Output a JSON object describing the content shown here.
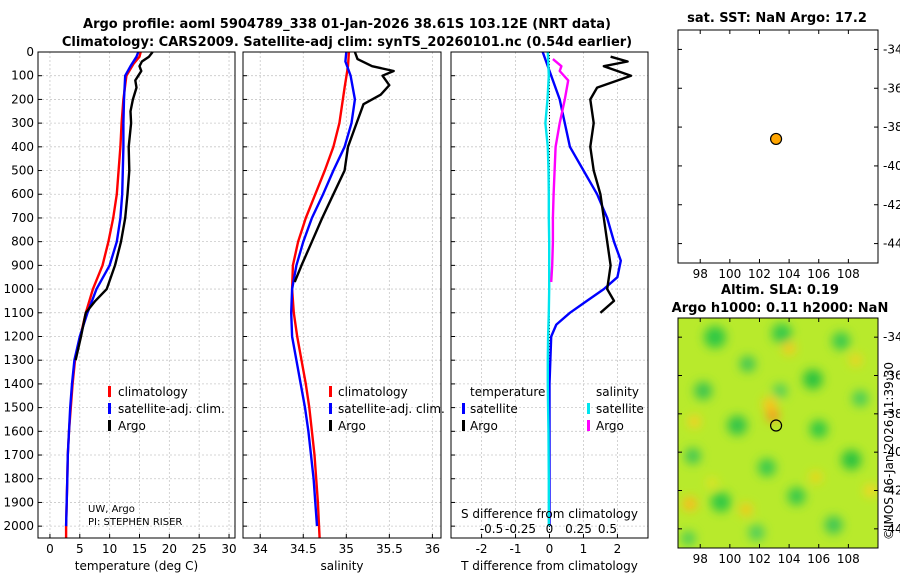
{
  "titles": {
    "line1": "Argo profile: aoml 5904789_338 01-Jan-2026 38.61S 103.12E (NRT data)",
    "line2": "Climatology: CARS2009. Satellite-adj clim: synTS_20260101.nc (0.54d earlier)",
    "sst": "sat. SST: NaN Argo: 17.2",
    "sla1": "Altim. SLA: 0.19",
    "sla2": "Argo h1000: 0.11 h2000: NaN"
  },
  "credit": {
    "line1": "UW, Argo",
    "line2": "PI: STEPHEN RISER"
  },
  "watermark": "©IMOS 06-Jan-2026 11:39:30",
  "legends": {
    "main": [
      "climatology",
      "satellite-adj. clim.",
      "Argo"
    ],
    "diff_t_header": "temperature",
    "diff_s_header": "salinity",
    "diff_items": [
      "satellite",
      "Argo"
    ]
  },
  "colors": {
    "clim": "#ff0000",
    "sat": "#0000ff",
    "argo": "#000000",
    "sat_s": "#00e5ee",
    "argo_s": "#ff00ff",
    "marker": "#ffa500"
  },
  "chart_data": [
    {
      "type": "line",
      "name": "temperature",
      "xlabel": "temperature (deg C)",
      "ylabel": "",
      "xlim": [
        -2,
        31
      ],
      "ylim": [
        2050,
        0
      ],
      "xticks": [
        0,
        5,
        10,
        15,
        20,
        25,
        30
      ],
      "xtick_labels": [
        "0",
        "5",
        "10",
        "15",
        "20",
        "25",
        "30"
      ],
      "yticks": [
        0,
        100,
        200,
        300,
        400,
        500,
        600,
        700,
        800,
        900,
        1000,
        1100,
        1200,
        1300,
        1400,
        1500,
        1600,
        1700,
        1800,
        1900,
        2000
      ],
      "ytick_labels": [
        "0",
        "100",
        "200",
        "300",
        "400",
        "500",
        "600",
        "700",
        "800",
        "900",
        "1000",
        "1100",
        "1200",
        "1300",
        "1400",
        "1500",
        "1600",
        "1700",
        "1800",
        "1900",
        "2000"
      ],
      "series": [
        {
          "name": "climatology",
          "color_key": "clim",
          "x": [
            15.2,
            15.0,
            14.0,
            12.8,
            12.3,
            12.0,
            11.8,
            11.5,
            11.2,
            10.6,
            9.8,
            8.8,
            7.2,
            6.0,
            5.1,
            4.2,
            3.8,
            3.5,
            3.2,
            3.0,
            2.9,
            2.8,
            2.7,
            2.7
          ],
          "y": [
            0,
            20,
            50,
            100,
            200,
            300,
            400,
            500,
            600,
            700,
            800,
            900,
            1000,
            1100,
            1200,
            1300,
            1400,
            1500,
            1600,
            1700,
            1800,
            1900,
            2000,
            2050
          ]
        },
        {
          "name": "satellite-adj. clim.",
          "color_key": "sat",
          "x": [
            14.8,
            14.5,
            13.5,
            12.6,
            12.4,
            12.3,
            12.3,
            12.2,
            12.1,
            11.8,
            11.2,
            10.0,
            7.8,
            6.3,
            5.0,
            4.1,
            3.7,
            3.4,
            3.2,
            3.0,
            2.9,
            2.8,
            2.7
          ],
          "y": [
            0,
            20,
            60,
            100,
            200,
            300,
            400,
            500,
            600,
            700,
            800,
            900,
            1000,
            1100,
            1200,
            1300,
            1400,
            1500,
            1600,
            1700,
            1800,
            1900,
            2000
          ]
        },
        {
          "name": "Argo",
          "color_key": "argo",
          "x": [
            17.2,
            16.6,
            15.4,
            15.0,
            15.3,
            14.8,
            14.3,
            14.5,
            13.9,
            13.5,
            13.6,
            13.2,
            13.3,
            13.0,
            12.6,
            11.9,
            10.9,
            9.5,
            7.6,
            6.0,
            5.2,
            4.3
          ],
          "y": [
            0,
            20,
            40,
            60,
            80,
            100,
            120,
            150,
            200,
            250,
            300,
            400,
            500,
            600,
            700,
            800,
            900,
            1000,
            1050,
            1100,
            1200,
            1300
          ]
        }
      ]
    },
    {
      "type": "line",
      "name": "salinity",
      "xlabel": "salinity",
      "xlim": [
        33.8,
        36.1
      ],
      "ylim": [
        2050,
        0
      ],
      "xticks": [
        34,
        34.5,
        35,
        35.5,
        36
      ],
      "xtick_labels": [
        "34",
        "34.5",
        "35",
        "35.5",
        "36"
      ],
      "series": [
        {
          "name": "climatology",
          "color_key": "clim",
          "x": [
            35.03,
            35.02,
            34.98,
            34.92,
            34.85,
            34.75,
            34.64,
            34.53,
            34.44,
            34.38,
            34.37,
            34.39,
            34.43,
            34.48,
            34.53,
            34.57,
            34.6,
            34.63,
            34.65,
            34.67,
            34.69
          ],
          "y": [
            0,
            60,
            150,
            300,
            400,
            500,
            600,
            700,
            800,
            900,
            1000,
            1100,
            1200,
            1300,
            1400,
            1500,
            1600,
            1700,
            1800,
            1900,
            2050
          ]
        },
        {
          "name": "satellite-adj. clim.",
          "color_key": "sat",
          "x": [
            35.0,
            34.99,
            35.05,
            35.1,
            35.06,
            34.98,
            34.85,
            34.73,
            34.6,
            34.5,
            34.42,
            34.37,
            34.36,
            34.37,
            34.42,
            34.47,
            34.52,
            34.56,
            34.59,
            34.62,
            34.64,
            34.66
          ],
          "y": [
            0,
            40,
            100,
            200,
            300,
            400,
            500,
            600,
            700,
            800,
            900,
            1000,
            1100,
            1200,
            1300,
            1400,
            1500,
            1600,
            1700,
            1800,
            1900,
            2000
          ]
        },
        {
          "name": "Argo",
          "color_key": "argo",
          "x": [
            35.1,
            35.13,
            35.3,
            35.55,
            35.42,
            35.5,
            35.4,
            35.2,
            35.12,
            35.02,
            34.98,
            34.85,
            34.72,
            34.6,
            34.48,
            34.4
          ],
          "y": [
            0,
            30,
            60,
            80,
            100,
            140,
            180,
            220,
            300,
            400,
            500,
            600,
            700,
            800,
            900,
            970
          ]
        }
      ]
    },
    {
      "type": "line",
      "name": "difference",
      "xlabel": "T difference from climatology",
      "xlabel_top": "S difference from climatology",
      "xlim": [
        -2.9,
        2.9
      ],
      "ylim": [
        2050,
        0
      ],
      "xticks": [
        -2,
        -1,
        0,
        1,
        2
      ],
      "xtick_labels": [
        "-2",
        "-1",
        "0",
        "1",
        "2"
      ],
      "sticks": [
        -0.5,
        -0.25,
        0,
        0.25,
        0.5
      ],
      "stick_labels": [
        "-0.5",
        "-0.25",
        "0",
        "0.25",
        "0.5"
      ],
      "series": [
        {
          "name": "T satellite",
          "color_key": "sat",
          "x": [
            -0.2,
            0.05,
            0.3,
            0.6,
            1.0,
            1.4,
            1.7,
            1.9,
            2.1,
            2.0,
            1.6,
            1.1,
            0.6,
            0.2,
            0.05,
            0.0,
            0.0,
            0.0,
            0.0
          ],
          "y": [
            0,
            100,
            200,
            400,
            500,
            600,
            700,
            800,
            880,
            950,
            1000,
            1050,
            1100,
            1150,
            1200,
            1400,
            1600,
            1800,
            2000
          ]
        },
        {
          "name": "T Argo",
          "color_key": "argo",
          "x": [
            1.8,
            2.3,
            1.6,
            2.4,
            1.4,
            1.2,
            1.3,
            1.2,
            1.3,
            1.5,
            1.6,
            1.7,
            1.8,
            1.7,
            1.9,
            1.5
          ],
          "y": [
            20,
            40,
            60,
            100,
            150,
            200,
            300,
            400,
            500,
            600,
            700,
            800,
            900,
            1000,
            1050,
            1100
          ]
        },
        {
          "name": "S satellite",
          "color_key": "sat_s",
          "x": [
            -0.05,
            -0.02,
            -0.06,
            -0.12,
            -0.05,
            -0.03,
            -0.02,
            -0.02,
            -0.01,
            -0.01,
            -0.01,
            -0.02,
            -0.04,
            -0.05,
            -0.05,
            -0.04,
            -0.03,
            -0.02,
            -0.02
          ],
          "y": [
            0,
            100,
            200,
            300,
            400,
            500,
            600,
            700,
            800,
            900,
            1000,
            1100,
            1200,
            1300,
            1400,
            1500,
            1600,
            1800,
            2000
          ]
        },
        {
          "name": "S Argo",
          "color_key": "argo_s",
          "x": [
            0.1,
            0.35,
            0.3,
            0.55,
            0.45,
            0.3,
            0.18,
            0.15,
            0.12,
            0.1,
            0.1,
            0.08,
            0.05
          ],
          "y": [
            30,
            60,
            80,
            120,
            200,
            300,
            400,
            500,
            600,
            700,
            800,
            900,
            970
          ]
        }
      ]
    },
    {
      "type": "scatter",
      "name": "sst map",
      "xlim": [
        96.5,
        110
      ],
      "ylim": [
        -45,
        -33
      ],
      "xticks": [
        98,
        100,
        102,
        104,
        106,
        108
      ],
      "xtick_labels": [
        "98",
        "100",
        "102",
        "104",
        "106",
        "108"
      ],
      "yticks": [
        -34,
        -36,
        -38,
        -40,
        -42,
        -44
      ],
      "ytick_labels": [
        "-34",
        "-36",
        "-38",
        "-40",
        "-42",
        "-44"
      ],
      "point": {
        "lon": 103.12,
        "lat": -38.61
      }
    },
    {
      "type": "heatmap",
      "name": "sla map",
      "xlim": [
        96.5,
        110
      ],
      "ylim": [
        -45,
        -33
      ],
      "xticks": [
        98,
        100,
        102,
        104,
        106,
        108
      ],
      "xtick_labels": [
        "98",
        "100",
        "102",
        "104",
        "106",
        "108"
      ],
      "yticks": [
        -34,
        -36,
        -38,
        -40,
        -42,
        -44
      ],
      "ytick_labels": [
        "-34",
        "-36",
        "-38",
        "-40",
        "-42",
        "-44"
      ],
      "point": {
        "lon": 103.12,
        "lat": -38.61
      }
    }
  ]
}
